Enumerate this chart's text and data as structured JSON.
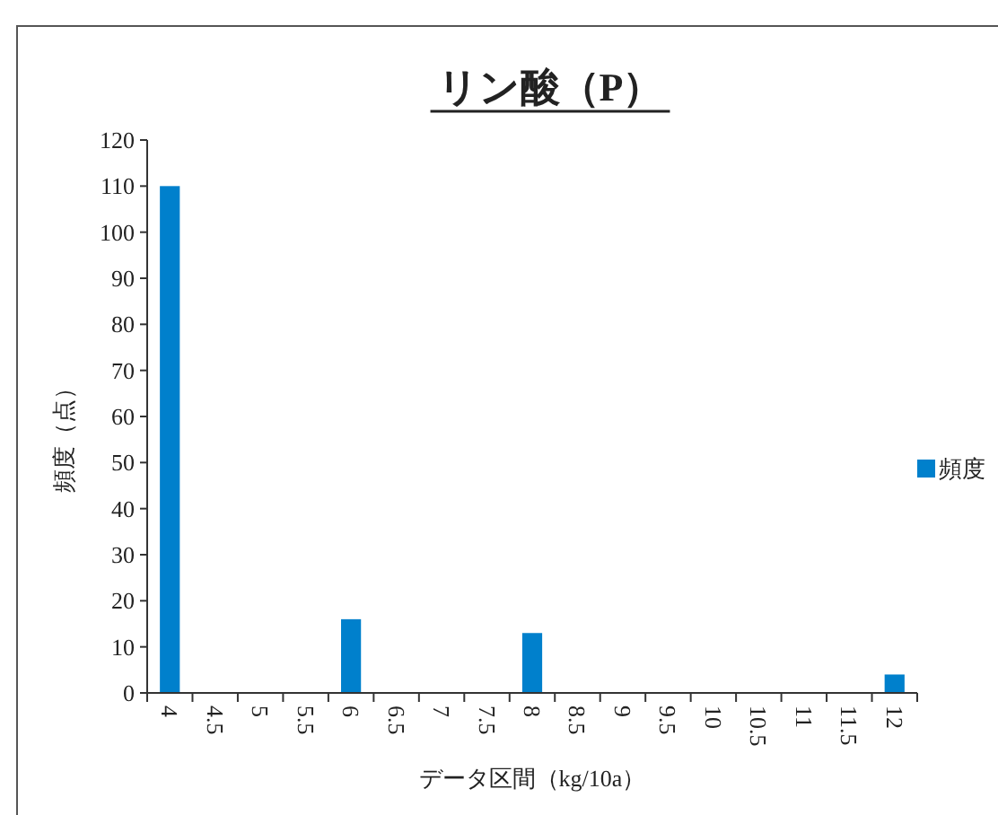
{
  "chart_data": {
    "type": "bar",
    "title": "リン酸（P）",
    "xlabel": "データ区間（kg/10a）",
    "ylabel": "頻度（点）",
    "categories": [
      "4",
      "4.5",
      "5",
      "5.5",
      "6",
      "6.5",
      "7",
      "7.5",
      "8",
      "8.5",
      "9",
      "9.5",
      "10",
      "10.5",
      "11",
      "11.5",
      "12"
    ],
    "series": [
      {
        "name": "頻度",
        "color": "#0080cc",
        "values": [
          110,
          0,
          0,
          0,
          16,
          0,
          0,
          0,
          13,
          0,
          0,
          0,
          0,
          0,
          0,
          0,
          4
        ]
      }
    ],
    "ylim": [
      0,
      120
    ],
    "yticks": [
      0,
      10,
      20,
      30,
      40,
      50,
      60,
      70,
      80,
      90,
      100,
      110,
      120
    ],
    "grid": false,
    "legend": "right"
  }
}
